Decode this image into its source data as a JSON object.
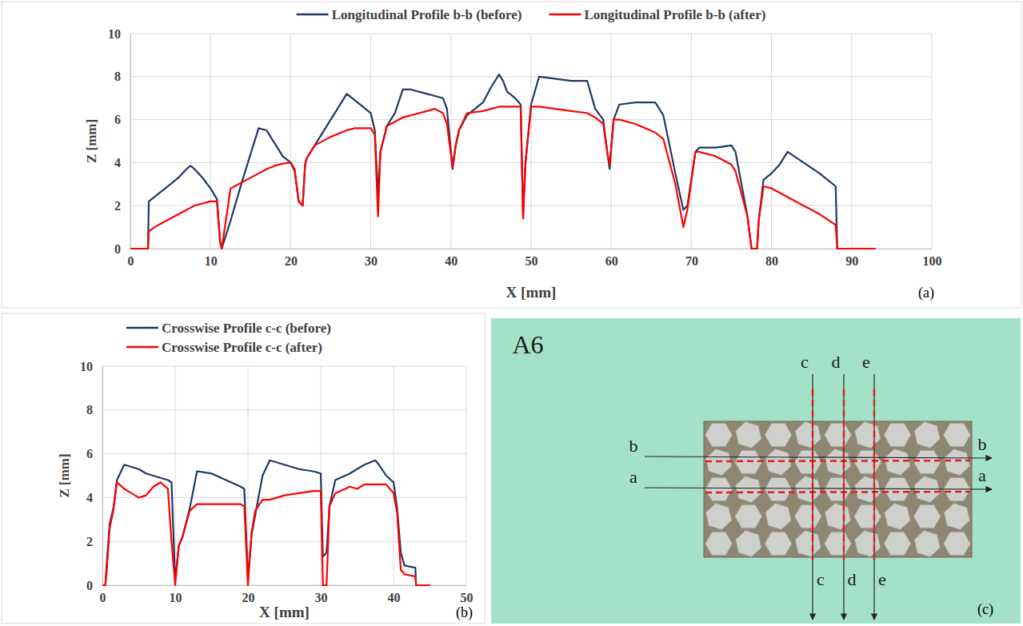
{
  "chart_data": [
    {
      "type": "line",
      "x": [
        0,
        2.2,
        2.3,
        3,
        4,
        5,
        6,
        7,
        7.5,
        8,
        9,
        10,
        10.8,
        11.2,
        11.4,
        12.5,
        14,
        16,
        17,
        18,
        19,
        20,
        20.5,
        21,
        21.5,
        21.8,
        22,
        23,
        25,
        27,
        28,
        29,
        30,
        30.5,
        30.9,
        31.2,
        32,
        33,
        34,
        35,
        37,
        38,
        39,
        39.5,
        40.2,
        40.6,
        41,
        42,
        44,
        45,
        46,
        46.5,
        47,
        48,
        48.7,
        49,
        49.3,
        50,
        51,
        55,
        57,
        58,
        59,
        59.5,
        59.8,
        60.3,
        61,
        63,
        65.5,
        66.5,
        68,
        69,
        69.5,
        70.5,
        71,
        73,
        75,
        75.5,
        77,
        77.5,
        78.2,
        78.4,
        79,
        80,
        81,
        82,
        84,
        86,
        88,
        88.2,
        93
      ],
      "series": [
        {
          "name": "Longitudinal Profile b-b (before)",
          "color": "#1f3864",
          "values": [
            0,
            0,
            2.2,
            2.4,
            2.7,
            3.0,
            3.3,
            3.7,
            3.85,
            3.7,
            3.3,
            2.8,
            2.3,
            0.3,
            0,
            1.3,
            3.2,
            5.6,
            5.5,
            4.9,
            4.3,
            4.0,
            3.6,
            2.2,
            2.0,
            3.9,
            4.2,
            4.8,
            6.0,
            7.2,
            6.9,
            6.6,
            6.3,
            5.5,
            2.5,
            4.5,
            5.7,
            6.3,
            7.4,
            7.4,
            7.2,
            7.1,
            7.0,
            6.5,
            3.7,
            4.8,
            5.5,
            6.2,
            6.8,
            7.5,
            8.1,
            7.8,
            7.3,
            7.0,
            6.7,
            1.5,
            4.0,
            6.7,
            8.0,
            7.8,
            7.8,
            6.5,
            6.0,
            4.5,
            3.7,
            6.0,
            6.7,
            6.8,
            6.8,
            6.2,
            3.5,
            1.8,
            2.0,
            4.5,
            4.7,
            4.7,
            4.8,
            4.5,
            1.5,
            0,
            0,
            1.3,
            3.2,
            3.5,
            3.9,
            4.5,
            4.0,
            3.5,
            2.9,
            0,
            0
          ]
        },
        {
          "name": "Longitudinal Profile b-b (after)",
          "color": "#ff0000",
          "values": [
            0,
            0,
            0.8,
            1.0,
            1.2,
            1.4,
            1.6,
            1.8,
            1.9,
            2.0,
            2.1,
            2.2,
            2.2,
            0.3,
            0,
            2.8,
            3.1,
            3.5,
            3.7,
            3.85,
            3.95,
            4.0,
            3.7,
            2.2,
            2.0,
            3.9,
            4.2,
            4.8,
            5.2,
            5.5,
            5.6,
            5.6,
            5.6,
            5.3,
            1.5,
            4.5,
            5.7,
            5.9,
            6.1,
            6.2,
            6.4,
            6.5,
            6.3,
            5.8,
            3.8,
            4.8,
            5.5,
            6.3,
            6.4,
            6.5,
            6.6,
            6.6,
            6.6,
            6.6,
            6.6,
            1.4,
            4.0,
            6.6,
            6.6,
            6.4,
            6.3,
            6.1,
            5.8,
            4.5,
            3.9,
            6.0,
            6.0,
            5.8,
            5.4,
            5.1,
            3.0,
            1.0,
            1.8,
            4.5,
            4.5,
            4.3,
            3.9,
            3.6,
            1.5,
            0,
            0,
            1.3,
            2.9,
            2.8,
            2.6,
            2.4,
            2.0,
            1.6,
            1.1,
            0,
            0
          ]
        }
      ],
      "xlabel": "X [mm]",
      "ylabel": "Z [mm]",
      "xlim": [
        0,
        100
      ],
      "xticks": [
        0,
        10,
        20,
        30,
        40,
        50,
        60,
        70,
        80,
        90,
        100
      ],
      "ylim": [
        0,
        10
      ],
      "yticks": [
        0,
        2,
        4,
        6,
        8,
        10
      ],
      "grid": true,
      "legend": "top",
      "annotations": [
        "(a)"
      ]
    },
    {
      "type": "line",
      "x": [
        0,
        0.4,
        0.6,
        1.0,
        1.5,
        2,
        3,
        4,
        5,
        6,
        7,
        8,
        9,
        9.5,
        10,
        10.5,
        11,
        12,
        13,
        15,
        17,
        19,
        19.5,
        20,
        20.5,
        21,
        22,
        23,
        25,
        27,
        29,
        30,
        30.3,
        30.8,
        31.2,
        32,
        34,
        35,
        36,
        37.5,
        38,
        39,
        40,
        40.5,
        41,
        41.5,
        43,
        43.1,
        45
      ],
      "series": [
        {
          "name": "Crosswise Profile c-c (before)",
          "color": "#1f3864",
          "values": [
            0,
            0,
            1.0,
            2.8,
            3.5,
            4.8,
            5.5,
            5.4,
            5.3,
            5.1,
            5.0,
            4.9,
            4.8,
            4.7,
            0.2,
            1.8,
            2.2,
            3.5,
            5.2,
            5.1,
            4.8,
            4.5,
            4.4,
            0.3,
            2.3,
            3.2,
            5.0,
            5.7,
            5.5,
            5.3,
            5.2,
            5.1,
            1.3,
            1.5,
            3.6,
            4.8,
            5.1,
            5.3,
            5.5,
            5.7,
            5.5,
            5.0,
            4.7,
            3.5,
            1.5,
            0.9,
            0.8,
            0,
            0
          ]
        },
        {
          "name": "Crosswise Profile c-c (after)",
          "color": "#ff0000",
          "values": [
            0,
            0,
            0.7,
            2.6,
            3.4,
            4.7,
            4.4,
            4.2,
            4.0,
            4.1,
            4.5,
            4.7,
            4.4,
            2.0,
            0,
            1.8,
            2.2,
            3.4,
            3.7,
            3.7,
            3.7,
            3.7,
            3.6,
            0,
            2.4,
            3.4,
            3.9,
            3.9,
            4.1,
            4.2,
            4.3,
            4.3,
            0,
            0,
            3.6,
            4.2,
            4.5,
            4.4,
            4.6,
            4.6,
            4.6,
            4.6,
            4.2,
            3.3,
            0.7,
            0.5,
            0.4,
            0,
            0
          ]
        }
      ],
      "xlabel": "X [mm]",
      "ylabel": "Z [mm]",
      "xlim": [
        0,
        50
      ],
      "xticks": [
        0,
        10,
        20,
        30,
        40,
        50
      ],
      "ylim": [
        0,
        10
      ],
      "yticks": [
        0,
        2,
        4,
        6,
        8,
        10
      ],
      "grid": true,
      "legend": "top-left",
      "annotations": [
        "(b)"
      ]
    }
  ],
  "photo": {
    "title": "A6",
    "lines": [
      "a",
      "b",
      "c",
      "d",
      "e"
    ],
    "panel": "(c)"
  }
}
